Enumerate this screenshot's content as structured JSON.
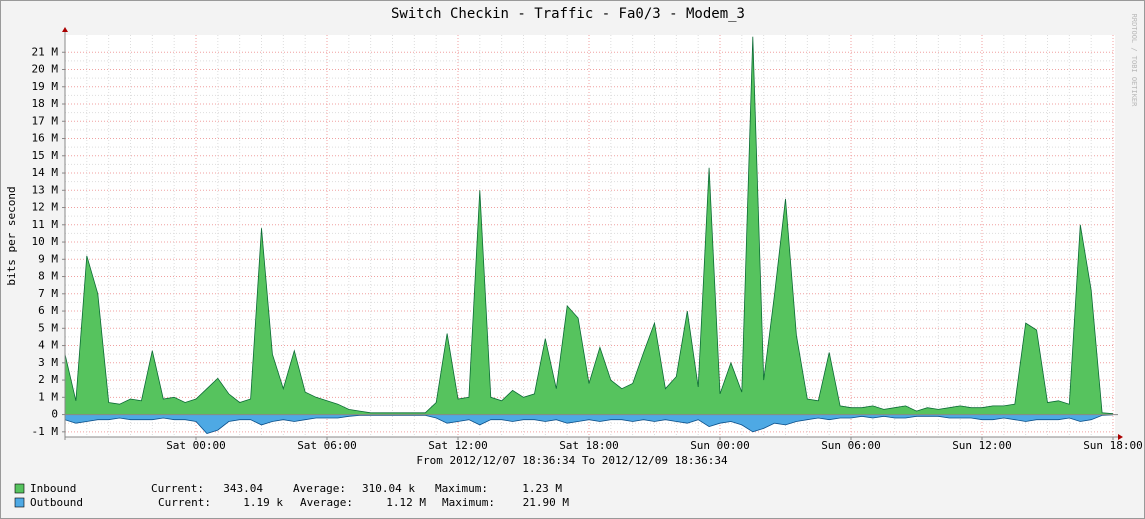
{
  "chart_data": {
    "type": "area",
    "title": "Switch Checkin - Traffic - Fa0/3  - Modem_3",
    "y_label": "bits per second",
    "x_label": "From 2012/12/07 18:36:34 To 2012/12/09 18:36:34",
    "watermark": "RRDTOOL / TOBI OETIKER",
    "categories": [
      null,
      null,
      null,
      null,
      null,
      null,
      null,
      null,
      null,
      null,
      null,
      null,
      "Sat 00:00",
      null,
      null,
      null,
      null,
      null,
      null,
      null,
      null,
      null,
      null,
      null,
      "Sat 06:00",
      null,
      null,
      null,
      null,
      null,
      null,
      null,
      null,
      null,
      null,
      null,
      "Sat 12:00",
      null,
      null,
      null,
      null,
      null,
      null,
      null,
      null,
      null,
      null,
      null,
      "Sat 18:00",
      null,
      null,
      null,
      null,
      null,
      null,
      null,
      null,
      null,
      null,
      null,
      "Sun 00:00",
      null,
      null,
      null,
      null,
      null,
      null,
      null,
      null,
      null,
      null,
      null,
      "Sun 06:00",
      null,
      null,
      null,
      null,
      null,
      null,
      null,
      null,
      null,
      null,
      null,
      "Sun 12:00",
      null,
      null,
      null,
      null,
      null,
      null,
      null,
      null,
      null,
      null,
      null,
      "Sun 18:00"
    ],
    "ylim": [
      -1300000,
      22000000
    ],
    "yticks": [
      {
        "value": -1000000,
        "label": "-1 M"
      },
      0,
      {
        "value": 1000000,
        "label": "1 M"
      },
      {
        "value": 2000000,
        "label": "2 M"
      },
      {
        "value": 3000000,
        "label": "3 M"
      },
      {
        "value": 4000000,
        "label": "4 M"
      },
      {
        "value": 5000000,
        "label": "5 M"
      },
      {
        "value": 6000000,
        "label": "6 M"
      },
      {
        "value": 7000000,
        "label": "7 M"
      },
      {
        "value": 8000000,
        "label": "8 M"
      },
      {
        "value": 9000000,
        "label": "9 M"
      },
      {
        "value": 10000000,
        "label": "10 M"
      },
      {
        "value": 11000000,
        "label": "11 M"
      },
      {
        "value": 12000000,
        "label": "12 M"
      },
      {
        "value": 13000000,
        "label": "13 M"
      },
      {
        "value": 14000000,
        "label": "14 M"
      },
      {
        "value": 15000000,
        "label": "15 M"
      },
      {
        "value": 16000000,
        "label": "16 M"
      },
      {
        "value": 17000000,
        "label": "17 M"
      },
      {
        "value": 18000000,
        "label": "18 M"
      },
      {
        "value": 19000000,
        "label": "19 M"
      },
      {
        "value": 20000000,
        "label": "20 M"
      },
      {
        "value": 21000000,
        "label": "21 M"
      }
    ],
    "grid": true,
    "series": [
      {
        "name": "Inbound",
        "color": "#56c35e",
        "line_color": "#0b6b35",
        "values": [
          3500000,
          800000,
          9200000,
          7000000,
          700000,
          600000,
          900000,
          800000,
          3700000,
          900000,
          1000000,
          700000,
          900000,
          1500000,
          2100000,
          1200000,
          700000,
          900000,
          10800000,
          3500000,
          1500000,
          3700000,
          1300000,
          1000000,
          800000,
          600000,
          300000,
          200000,
          100000,
          100000,
          100000,
          100000,
          100000,
          100000,
          700000,
          4700000,
          900000,
          1000000,
          13000000,
          1000000,
          800000,
          1400000,
          1000000,
          1200000,
          4400000,
          1500000,
          6300000,
          5600000,
          1800000,
          3900000,
          2000000,
          1500000,
          1800000,
          3600000,
          5300000,
          1500000,
          2200000,
          6000000,
          1600000,
          14300000,
          1200000,
          3000000,
          1300000,
          21900000,
          2000000,
          7000000,
          12500000,
          4600000,
          900000,
          800000,
          3600000,
          500000,
          400000,
          400000,
          500000,
          300000,
          400000,
          500000,
          200000,
          400000,
          300000,
          400000,
          500000,
          400000,
          400000,
          500000,
          500000,
          600000,
          5300000,
          4900000,
          700000,
          800000,
          600000,
          11000000,
          7200000,
          100000,
          50000
        ]
      },
      {
        "name": "Outbound",
        "color": "#4ea9e4",
        "line_color": "#0a4f8a",
        "values": [
          -300000,
          -500000,
          -400000,
          -300000,
          -300000,
          -200000,
          -300000,
          -300000,
          -300000,
          -200000,
          -300000,
          -300000,
          -400000,
          -1100000,
          -900000,
          -400000,
          -300000,
          -300000,
          -600000,
          -400000,
          -300000,
          -400000,
          -300000,
          -200000,
          -200000,
          -200000,
          -100000,
          -50000,
          -50000,
          -50000,
          -50000,
          -50000,
          -50000,
          -50000,
          -200000,
          -500000,
          -400000,
          -300000,
          -600000,
          -300000,
          -300000,
          -400000,
          -300000,
          -300000,
          -400000,
          -300000,
          -500000,
          -400000,
          -300000,
          -400000,
          -300000,
          -300000,
          -400000,
          -300000,
          -400000,
          -300000,
          -400000,
          -500000,
          -300000,
          -700000,
          -500000,
          -400000,
          -600000,
          -1000000,
          -800000,
          -500000,
          -600000,
          -400000,
          -300000,
          -200000,
          -300000,
          -200000,
          -200000,
          -100000,
          -200000,
          -100000,
          -200000,
          -200000,
          -100000,
          -100000,
          -100000,
          -200000,
          -200000,
          -200000,
          -300000,
          -300000,
          -200000,
          -300000,
          -400000,
          -300000,
          -300000,
          -300000,
          -200000,
          -400000,
          -300000,
          -50000,
          -20000
        ]
      }
    ],
    "legend": {
      "current_label": "Current:",
      "average_label": "Average:",
      "maximum_label": "Maximum:",
      "rows": [
        {
          "current": "343.04",
          "average": "310.04 k",
          "maximum": "1.23 M"
        },
        {
          "current": "1.19 k",
          "average": "1.12 M",
          "maximum": "21.90 M"
        }
      ]
    }
  }
}
